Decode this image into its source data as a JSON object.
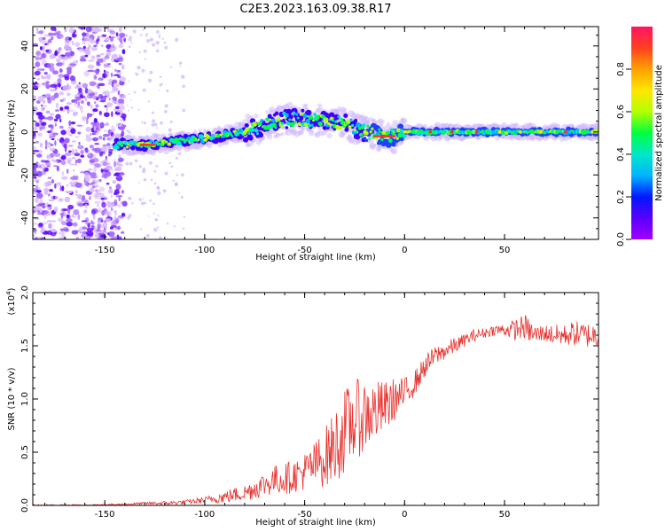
{
  "figure_title": "C2E3.2023.163.09.38.R17",
  "colors": {
    "snr_line": "#e8302c",
    "axis": "#000000",
    "colorbar_stops": [
      "#a000ff",
      "#5a00ff",
      "#0018ff",
      "#00b4ff",
      "#00e8c8",
      "#00ff40",
      "#b4ff00",
      "#ffe600",
      "#ffa000",
      "#ff4020",
      "#ff1464"
    ]
  },
  "chart_data": [
    {
      "type": "heatmap",
      "title": "",
      "xlabel": "Height of straight line (km)",
      "ylabel": "Frequency (Hz)",
      "xlim": [
        -186,
        97
      ],
      "ylim": [
        -50,
        49
      ],
      "xticks": [
        -150,
        -100,
        -50,
        0,
        50
      ],
      "yticks": [
        -40,
        -20,
        0,
        20,
        40
      ],
      "colorbar": {
        "label": "Normalized spectral amplitude",
        "range": [
          0.0,
          1.0
        ],
        "ticks": [
          0.0,
          0.2,
          0.4,
          0.6,
          0.8
        ]
      },
      "ridge": {
        "x": [
          -145,
          -130,
          -120,
          -100,
          -80,
          -70,
          -60,
          -50,
          -40,
          -30,
          -25,
          -20,
          -15,
          -10,
          -5,
          0,
          20,
          40,
          60,
          80,
          97
        ],
        "freq": [
          -6,
          -6,
          -5,
          -3,
          0,
          3,
          6,
          6,
          5,
          4,
          2,
          0,
          -1,
          -2,
          -2,
          0,
          0,
          0,
          0,
          0,
          0
        ]
      },
      "noise_region_x": [
        -186,
        -140
      ]
    },
    {
      "type": "line",
      "title": "",
      "xlabel": "Height of straight line (km)",
      "ylabel": "SNR (10 * v/v)",
      "y_scale_label": "(x10",
      "y_scale_exponent": "4",
      "xlim": [
        -186,
        97
      ],
      "ylim": [
        0,
        2.0
      ],
      "xticks": [
        -150,
        -100,
        -50,
        0,
        50
      ],
      "yticks": [
        "0.0",
        "0.5",
        "1.0",
        "1.5",
        "2.0"
      ],
      "series": [
        {
          "name": "SNR",
          "x": [
            -186,
            -160,
            -140,
            -130,
            -120,
            -110,
            -100,
            -90,
            -80,
            -75,
            -70,
            -65,
            -60,
            -55,
            -50,
            -45,
            -40,
            -35,
            -30,
            -25,
            -20,
            -15,
            -10,
            -5,
            0,
            5,
            10,
            15,
            20,
            25,
            30,
            35,
            40,
            45,
            50,
            55,
            60,
            65,
            70,
            75,
            80,
            85,
            90,
            97
          ],
          "y": [
            0.0,
            0.0,
            0.01,
            0.02,
            0.02,
            0.03,
            0.05,
            0.08,
            0.12,
            0.16,
            0.2,
            0.24,
            0.25,
            0.28,
            0.32,
            0.38,
            0.45,
            0.55,
            0.7,
            0.8,
            0.85,
            0.88,
            0.92,
            1.0,
            1.05,
            1.15,
            1.3,
            1.4,
            1.45,
            1.5,
            1.55,
            1.6,
            1.62,
            1.65,
            1.65,
            1.65,
            1.68,
            1.6,
            1.62,
            1.6,
            1.6,
            1.62,
            1.6,
            1.6
          ],
          "noise_amplitude": [
            0.0,
            0.005,
            0.01,
            0.01,
            0.02,
            0.02,
            0.03,
            0.06,
            0.08,
            0.1,
            0.12,
            0.14,
            0.15,
            0.16,
            0.18,
            0.22,
            0.28,
            0.35,
            0.4,
            0.38,
            0.35,
            0.3,
            0.25,
            0.2,
            0.15,
            0.12,
            0.1,
            0.1,
            0.08,
            0.08,
            0.06,
            0.06,
            0.05,
            0.05,
            0.06,
            0.1,
            0.12,
            0.1,
            0.08,
            0.1,
            0.1,
            0.12,
            0.12,
            0.12
          ]
        }
      ]
    }
  ]
}
